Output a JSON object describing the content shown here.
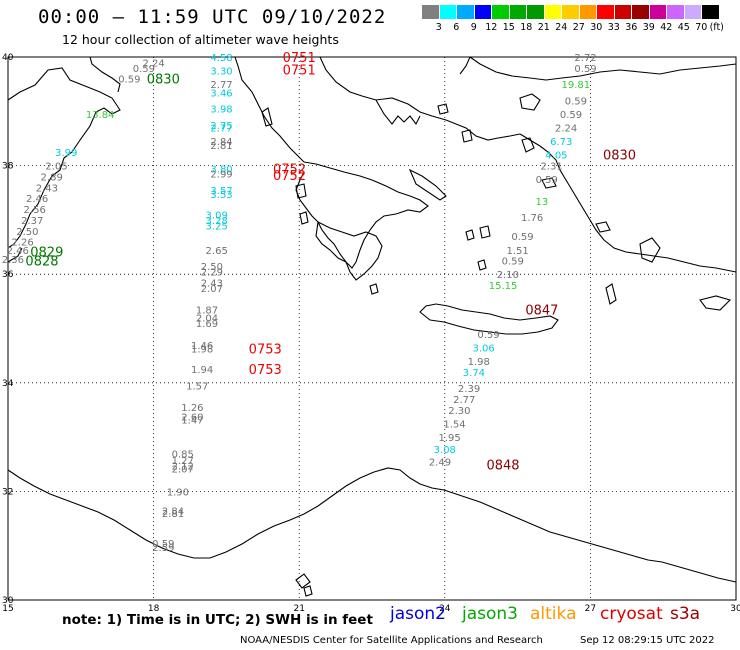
{
  "header": {
    "title": "00:00 – 11:59 UTC 09/10/2022",
    "subtitle": "12 hour collection of altimeter wave heights"
  },
  "scale": {
    "colors": [
      "#808080",
      "#00ffff",
      "#00aaff",
      "#0000ff",
      "#00cc00",
      "#00aa00",
      "#009900",
      "#ffff00",
      "#ffcc00",
      "#ff9900",
      "#ff0000",
      "#cc0000",
      "#990000",
      "#cc0099",
      "#cc66ff",
      "#ccaaff",
      "#000000"
    ],
    "ticks": [
      "3",
      "6",
      "9",
      "12",
      "15",
      "18",
      "21",
      "24",
      "27",
      "30",
      "33",
      "36",
      "39",
      "42",
      "45",
      "70",
      "(ft)"
    ]
  },
  "axes": {
    "lat_labels": [
      "40",
      "38",
      "36",
      "34",
      "32",
      "30"
    ],
    "lon_labels": [
      "15",
      "18",
      "21",
      "24",
      "27",
      "30"
    ]
  },
  "footer": {
    "note": "note:  1) Time is in UTC; 2) SWH is in feet",
    "legend": [
      {
        "name": "jason2",
        "color": "#0000dd"
      },
      {
        "name": "jason3",
        "color": "#00aa00"
      },
      {
        "name": "altika",
        "color": "#ff9900"
      },
      {
        "name": "cryosat",
        "color": "#dd0000"
      },
      {
        "name": "s3a",
        "color": "#990000"
      }
    ],
    "credit": "NOAA/NESDIS Center for Satellite Applications and Research",
    "timestamp": "Sep 12 08:29:15 UTC 2022"
  },
  "colors": {
    "gray": "#707070",
    "cyan": "#00ccdd",
    "green": "#33cc33",
    "dkgreen": "#007700",
    "red": "#ee0000",
    "maroon": "#880000"
  },
  "wave_labels": [
    {
      "t": "2.24",
      "c": "gray",
      "lon": 18.0,
      "lat": 39.9
    },
    {
      "t": "0.59",
      "c": "gray",
      "lon": 17.8,
      "lat": 39.8
    },
    {
      "t": "0.59",
      "c": "gray",
      "lon": 17.5,
      "lat": 39.6
    },
    {
      "t": "4.58",
      "c": "cyan",
      "lon": 19.4,
      "lat": 40.0
    },
    {
      "t": "3.30",
      "c": "cyan",
      "lon": 19.4,
      "lat": 39.75
    },
    {
      "t": "2.77",
      "c": "gray",
      "lon": 19.4,
      "lat": 39.5
    },
    {
      "t": "3.46",
      "c": "cyan",
      "lon": 19.4,
      "lat": 39.35
    },
    {
      "t": "3.98",
      "c": "cyan",
      "lon": 19.4,
      "lat": 39.05
    },
    {
      "t": "2.75",
      "c": "cyan",
      "lon": 19.4,
      "lat": 38.75
    },
    {
      "t": "2.77",
      "c": "cyan",
      "lon": 19.4,
      "lat": 38.7
    },
    {
      "t": "2.84",
      "c": "gray",
      "lon": 19.4,
      "lat": 38.45
    },
    {
      "t": "2.81",
      "c": "gray",
      "lon": 19.4,
      "lat": 38.38
    },
    {
      "t": "3.80",
      "c": "cyan",
      "lon": 19.4,
      "lat": 37.95
    },
    {
      "t": "2.99",
      "c": "gray",
      "lon": 19.4,
      "lat": 37.85
    },
    {
      "t": "3.57",
      "c": "cyan",
      "lon": 19.4,
      "lat": 37.55
    },
    {
      "t": "3.53",
      "c": "cyan",
      "lon": 19.4,
      "lat": 37.48
    },
    {
      "t": "3.09",
      "c": "cyan",
      "lon": 19.3,
      "lat": 37.1
    },
    {
      "t": "3.28",
      "c": "cyan",
      "lon": 19.3,
      "lat": 37.0
    },
    {
      "t": "3.25",
      "c": "cyan",
      "lon": 19.3,
      "lat": 36.9
    },
    {
      "t": "2.65",
      "c": "gray",
      "lon": 19.3,
      "lat": 36.45
    },
    {
      "t": "2.50",
      "c": "gray",
      "lon": 19.2,
      "lat": 36.15
    },
    {
      "t": "2.29",
      "c": "gray",
      "lon": 19.2,
      "lat": 36.05
    },
    {
      "t": "2.43",
      "c": "gray",
      "lon": 19.2,
      "lat": 35.85
    },
    {
      "t": "2.07",
      "c": "gray",
      "lon": 19.2,
      "lat": 35.75
    },
    {
      "t": "1.87",
      "c": "gray",
      "lon": 19.1,
      "lat": 35.35
    },
    {
      "t": "2.04",
      "c": "gray",
      "lon": 19.1,
      "lat": 35.2
    },
    {
      "t": "1.69",
      "c": "gray",
      "lon": 19.1,
      "lat": 35.1
    },
    {
      "t": "1.46",
      "c": "gray",
      "lon": 19.0,
      "lat": 34.7
    },
    {
      "t": "1.98",
      "c": "gray",
      "lon": 19.0,
      "lat": 34.63
    },
    {
      "t": "1.94",
      "c": "gray",
      "lon": 19.0,
      "lat": 34.25
    },
    {
      "t": "1.57",
      "c": "gray",
      "lon": 18.9,
      "lat": 33.95
    },
    {
      "t": "1.26",
      "c": "gray",
      "lon": 18.8,
      "lat": 33.55
    },
    {
      "t": "2.60",
      "c": "gray",
      "lon": 18.8,
      "lat": 33.38
    },
    {
      "t": "1.47",
      "c": "gray",
      "lon": 18.8,
      "lat": 33.32
    },
    {
      "t": "0.85",
      "c": "gray",
      "lon": 18.6,
      "lat": 32.7
    },
    {
      "t": "1.27",
      "c": "gray",
      "lon": 18.6,
      "lat": 32.58
    },
    {
      "t": "2.12",
      "c": "gray",
      "lon": 18.6,
      "lat": 32.48
    },
    {
      "t": "2.07",
      "c": "gray",
      "lon": 18.6,
      "lat": 32.42
    },
    {
      "t": "1.90",
      "c": "gray",
      "lon": 18.5,
      "lat": 32.0
    },
    {
      "t": "2.84",
      "c": "gray",
      "lon": 18.4,
      "lat": 31.65
    },
    {
      "t": "2.81",
      "c": "gray",
      "lon": 18.4,
      "lat": 31.6
    },
    {
      "t": "0.59",
      "c": "gray",
      "lon": 18.2,
      "lat": 31.05
    },
    {
      "t": "2.59",
      "c": "gray",
      "lon": 18.2,
      "lat": 30.98
    },
    {
      "t": "13.84",
      "c": "green",
      "lon": 16.9,
      "lat": 38.95
    },
    {
      "t": "3.99",
      "c": "cyan",
      "lon": 16.2,
      "lat": 38.25
    },
    {
      "t": "2.05",
      "c": "gray",
      "lon": 16.0,
      "lat": 38.0
    },
    {
      "t": "2.89",
      "c": "gray",
      "lon": 15.9,
      "lat": 37.8
    },
    {
      "t": "2.43",
      "c": "gray",
      "lon": 15.8,
      "lat": 37.6
    },
    {
      "t": "2.46",
      "c": "gray",
      "lon": 15.6,
      "lat": 37.4
    },
    {
      "t": "2.56",
      "c": "gray",
      "lon": 15.55,
      "lat": 37.2
    },
    {
      "t": "2.37",
      "c": "gray",
      "lon": 15.5,
      "lat": 37.0
    },
    {
      "t": "2.50",
      "c": "gray",
      "lon": 15.4,
      "lat": 36.8
    },
    {
      "t": "2.26",
      "c": "gray",
      "lon": 15.3,
      "lat": 36.6
    },
    {
      "t": "2.46",
      "c": "gray",
      "lon": 15.2,
      "lat": 36.45
    },
    {
      "t": "2.36",
      "c": "gray",
      "lon": 15.1,
      "lat": 36.28
    },
    {
      "t": "2.72",
      "c": "gray",
      "lon": 26.9,
      "lat": 40.0
    },
    {
      "t": "0.59",
      "c": "gray",
      "lon": 26.9,
      "lat": 39.8
    },
    {
      "t": "19.81",
      "c": "green",
      "lon": 26.7,
      "lat": 39.5
    },
    {
      "t": "0.59",
      "c": "gray",
      "lon": 26.7,
      "lat": 39.2
    },
    {
      "t": "0.59",
      "c": "gray",
      "lon": 26.6,
      "lat": 38.95
    },
    {
      "t": "2.24",
      "c": "gray",
      "lon": 26.5,
      "lat": 38.7
    },
    {
      "t": "6.73",
      "c": "cyan",
      "lon": 26.4,
      "lat": 38.45
    },
    {
      "t": "4.05",
      "c": "cyan",
      "lon": 26.3,
      "lat": 38.2
    },
    {
      "t": "2.31",
      "c": "gray",
      "lon": 26.2,
      "lat": 38.0
    },
    {
      "t": "0.59",
      "c": "gray",
      "lon": 26.1,
      "lat": 37.75
    },
    {
      "t": "13",
      "c": "green",
      "lon": 26.0,
      "lat": 37.35
    },
    {
      "t": "1.76",
      "c": "gray",
      "lon": 25.8,
      "lat": 37.05
    },
    {
      "t": "0.59",
      "c": "gray",
      "lon": 25.6,
      "lat": 36.7
    },
    {
      "t": "1.51",
      "c": "gray",
      "lon": 25.5,
      "lat": 36.45
    },
    {
      "t": "0.59",
      "c": "gray",
      "lon": 25.4,
      "lat": 36.25
    },
    {
      "t": "2.10",
      "c": "gray",
      "lon": 25.3,
      "lat": 36.0
    },
    {
      "t": "15.15",
      "c": "green",
      "lon": 25.2,
      "lat": 35.8
    },
    {
      "t": "0.59",
      "c": "gray",
      "lon": 24.9,
      "lat": 34.9
    },
    {
      "t": "3.06",
      "c": "cyan",
      "lon": 24.8,
      "lat": 34.65
    },
    {
      "t": "1.98",
      "c": "gray",
      "lon": 24.7,
      "lat": 34.4
    },
    {
      "t": "3.74",
      "c": "cyan",
      "lon": 24.6,
      "lat": 34.2
    },
    {
      "t": "2.39",
      "c": "gray",
      "lon": 24.5,
      "lat": 33.9
    },
    {
      "t": "2.77",
      "c": "gray",
      "lon": 24.4,
      "lat": 33.7
    },
    {
      "t": "2.30",
      "c": "gray",
      "lon": 24.3,
      "lat": 33.5
    },
    {
      "t": "1.54",
      "c": "gray",
      "lon": 24.2,
      "lat": 33.25
    },
    {
      "t": "1.95",
      "c": "gray",
      "lon": 24.1,
      "lat": 33.0
    },
    {
      "t": "3.08",
      "c": "cyan",
      "lon": 24.0,
      "lat": 32.78
    },
    {
      "t": "2.49",
      "c": "gray",
      "lon": 23.9,
      "lat": 32.55
    }
  ],
  "time_labels": [
    {
      "t": "0830",
      "c": "dkgreen",
      "lon": 18.2,
      "lat": 39.6
    },
    {
      "t": "0751",
      "c": "red",
      "lon": 21.0,
      "lat": 40.0
    },
    {
      "t": "0751",
      "c": "red",
      "lon": 21.0,
      "lat": 39.77
    },
    {
      "t": "0752",
      "c": "red",
      "lon": 20.8,
      "lat": 37.95
    },
    {
      "t": "0752",
      "c": "red",
      "lon": 20.8,
      "lat": 37.83
    },
    {
      "t": "0829",
      "c": "dkgreen",
      "lon": 15.8,
      "lat": 36.42
    },
    {
      "t": "0828",
      "c": "dkgreen",
      "lon": 15.7,
      "lat": 36.25
    },
    {
      "t": "0753",
      "c": "red",
      "lon": 20.3,
      "lat": 34.63
    },
    {
      "t": "0753",
      "c": "red",
      "lon": 20.3,
      "lat": 34.25
    },
    {
      "t": "0847",
      "c": "maroon",
      "lon": 26.0,
      "lat": 35.35
    },
    {
      "t": "0848",
      "c": "maroon",
      "lon": 25.2,
      "lat": 32.5
    },
    {
      "t": "0830",
      "c": "maroon",
      "lon": 27.6,
      "lat": 38.2
    }
  ]
}
